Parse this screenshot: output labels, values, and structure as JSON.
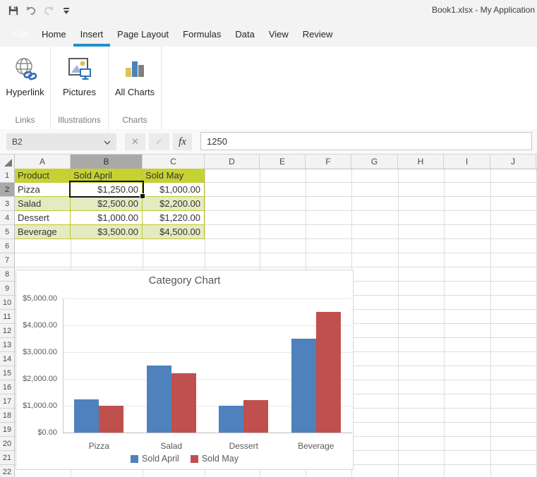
{
  "window": {
    "title": "Book1.xlsx - My Application"
  },
  "qat": {
    "icons": [
      "save-icon",
      "undo-icon",
      "redo-icon",
      "ribbon-options-icon"
    ]
  },
  "ribbon": {
    "active_tab": "Insert",
    "tabs": [
      {
        "label": "File"
      },
      {
        "label": "Home"
      },
      {
        "label": "Insert"
      },
      {
        "label": "Page Layout"
      },
      {
        "label": "Formulas"
      },
      {
        "label": "Data"
      },
      {
        "label": "View"
      },
      {
        "label": "Review"
      }
    ],
    "groups": [
      {
        "name": "Links",
        "buttons": [
          {
            "label": "Hyperlink",
            "icon": "hyperlink-icon"
          }
        ]
      },
      {
        "name": "Illustrations",
        "buttons": [
          {
            "label": "Pictures",
            "icon": "pictures-icon"
          }
        ]
      },
      {
        "name": "Charts",
        "buttons": [
          {
            "label": "All Charts",
            "icon": "all-charts-icon"
          }
        ]
      }
    ]
  },
  "formula_bar": {
    "name_box": "B2",
    "cancel_icon": "✕",
    "confirm_icon": "✓",
    "fx_label": "fx",
    "formula": "1250"
  },
  "grid": {
    "columns": [
      "A",
      "B",
      "C",
      "D",
      "E",
      "F",
      "G",
      "H",
      "I",
      "J"
    ],
    "rows": [
      "1",
      "2",
      "3",
      "4",
      "5",
      "6",
      "7",
      "8",
      "9",
      "10",
      "11",
      "12",
      "13",
      "14",
      "15",
      "16",
      "17",
      "18",
      "19",
      "20",
      "21",
      "22"
    ],
    "selection": {
      "active_cell": "B2",
      "active_column": "B",
      "active_row": "2"
    },
    "table": {
      "cells": [
        [
          "Product",
          "Sold April",
          "Sold May"
        ],
        [
          "Pizza",
          "$1,250.00",
          "$1,000.00"
        ],
        [
          "Salad",
          "$2,500.00",
          "$2,200.00"
        ],
        [
          "Dessert",
          "$1,000.00",
          "$1,220.00"
        ],
        [
          "Beverage",
          "$3,500.00",
          "$4,500.00"
        ]
      ]
    },
    "colors": {
      "table_header": "#C6D231",
      "table_alt_row": "#E4EBC2",
      "selected_header": "#A9A9A9"
    }
  },
  "accent_color": "#2290CB",
  "chart_data": {
    "type": "bar",
    "title": "Category Chart",
    "categories": [
      "Pizza",
      "Salad",
      "Dessert",
      "Beverage"
    ],
    "series": [
      {
        "name": "Sold April",
        "color": "#4F81BD",
        "values": [
          1250,
          2500,
          1000,
          3500
        ]
      },
      {
        "name": "Sold May",
        "color": "#C0504D",
        "values": [
          1000,
          2200,
          1220,
          4500
        ]
      }
    ],
    "y_ticks": [
      "$5,000.00",
      "$4,000.00",
      "$3,000.00",
      "$2,000.00",
      "$1,000.00",
      "$0.00"
    ],
    "ylim": [
      0,
      5000
    ],
    "xlabel": "",
    "ylabel": "",
    "grid": true,
    "legend_position": "bottom"
  }
}
